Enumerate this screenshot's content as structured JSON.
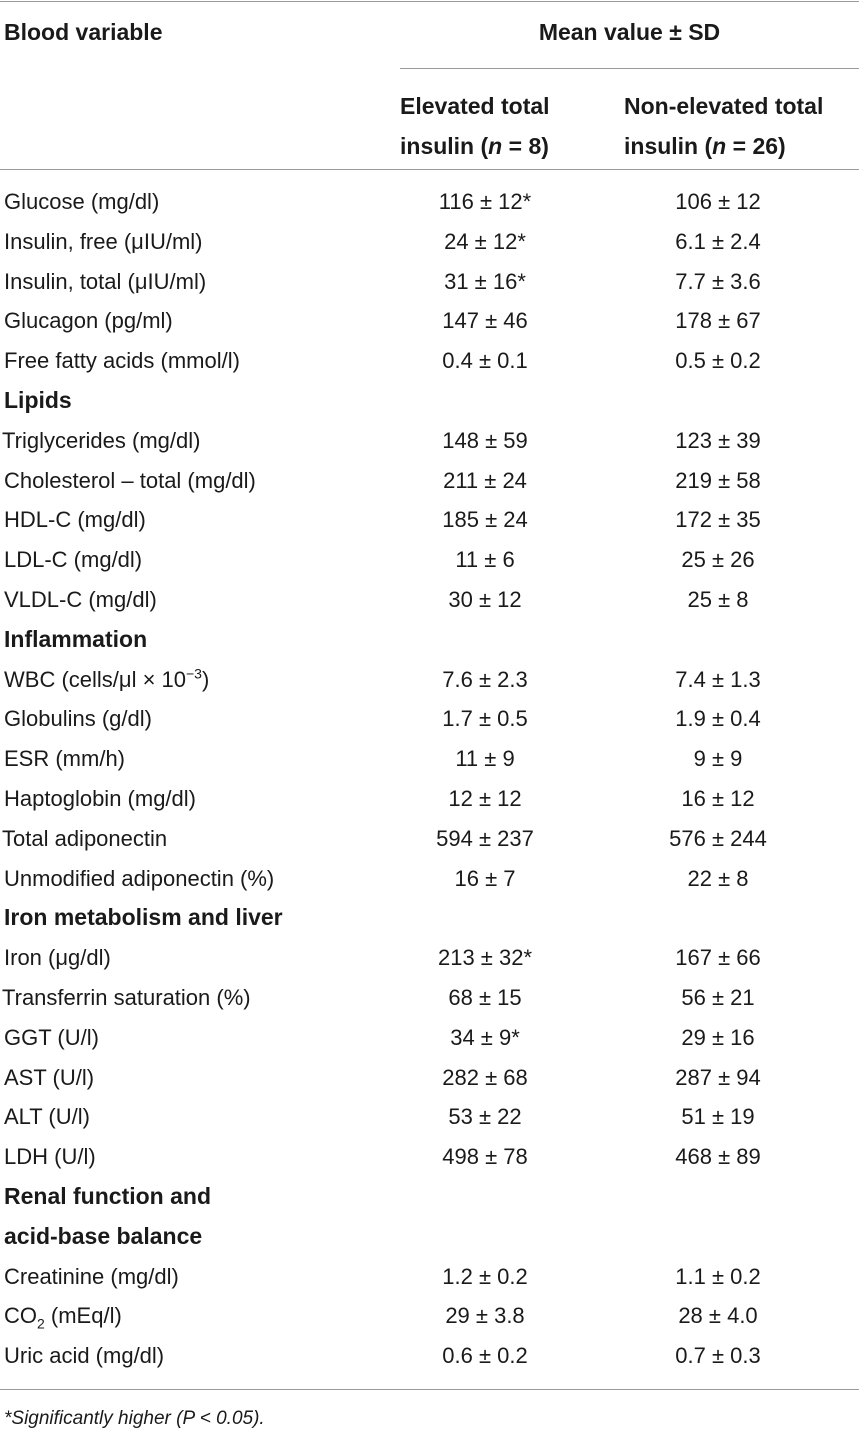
{
  "header": {
    "blood_variable": "Blood variable",
    "mean_value": "Mean value ± SD",
    "col1_line1": "Elevated total",
    "col1_line2_prefix": "insulin (",
    "col1_n": "n",
    "col1_line2_suffix": " = 8)",
    "col2_line1": "Non-elevated total",
    "col2_line2_prefix": "insulin (",
    "col2_n": "n",
    "col2_line2_suffix": " = 26)"
  },
  "rows": [
    {
      "type": "data",
      "label": "Glucose (mg/dl)",
      "elevated": "116 ± 12*",
      "non_elevated": "106 ± 12"
    },
    {
      "type": "data",
      "label": "Insulin, free (μIU/ml)",
      "elevated": "24 ± 12*",
      "non_elevated": "6.1 ± 2.4"
    },
    {
      "type": "data",
      "label": "Insulin, total (μIU/ml)",
      "elevated": "31 ± 16*",
      "non_elevated": "7.7 ± 3.6"
    },
    {
      "type": "data",
      "label": "Glucagon (pg/ml)",
      "elevated": "147 ± 46",
      "non_elevated": "178 ± 67"
    },
    {
      "type": "data",
      "label": "Free fatty acids (mmol/l)",
      "elevated": "0.4 ± 0.1",
      "non_elevated": "0.5 ± 0.2"
    },
    {
      "type": "section",
      "label": "Lipids"
    },
    {
      "type": "data",
      "flush": true,
      "label": "Triglycerides (mg/dl)",
      "elevated": "148 ± 59",
      "non_elevated": "123 ± 39"
    },
    {
      "type": "data",
      "label": "Cholesterol – total (mg/dl)",
      "elevated": "211 ± 24",
      "non_elevated": "219 ± 58"
    },
    {
      "type": "data",
      "label": "HDL-C (mg/dl)",
      "elevated": "185 ± 24",
      "non_elevated": "172 ± 35"
    },
    {
      "type": "data",
      "label": "LDL-C (mg/dl)",
      "elevated": "11 ± 6",
      "non_elevated": "25 ± 26"
    },
    {
      "type": "data",
      "label": "VLDL-C (mg/dl)",
      "elevated": "30 ± 12",
      "non_elevated": "25 ± 8"
    },
    {
      "type": "section",
      "label": "Inflammation"
    },
    {
      "type": "data",
      "label": "WBC (cells/μl × 10",
      "label_sup": "−3",
      "label_suffix": ")",
      "elevated": "7.6 ± 2.3",
      "non_elevated": "7.4 ± 1.3"
    },
    {
      "type": "data",
      "label": "Globulins (g/dl)",
      "elevated": "1.7 ± 0.5",
      "non_elevated": "1.9 ± 0.4"
    },
    {
      "type": "data",
      "label": "ESR (mm/h)",
      "elevated": "11 ± 9",
      "non_elevated": "9 ± 9"
    },
    {
      "type": "data",
      "label": "Haptoglobin (mg/dl)",
      "elevated": "12 ± 12",
      "non_elevated": "16 ± 12"
    },
    {
      "type": "data",
      "flush": true,
      "label": "Total adiponectin",
      "elevated": "594 ± 237",
      "non_elevated": "576 ± 244"
    },
    {
      "type": "data",
      "label": "Unmodified adiponectin (%)",
      "elevated": "16 ± 7",
      "non_elevated": "22 ± 8"
    },
    {
      "type": "section",
      "label": "Iron metabolism and liver"
    },
    {
      "type": "data",
      "label": "Iron (μg/dl)",
      "elevated": "213 ± 32*",
      "non_elevated": "167 ± 66"
    },
    {
      "type": "data",
      "flush": true,
      "label": "Transferrin saturation (%)",
      "elevated": "68 ± 15",
      "non_elevated": "56 ± 21"
    },
    {
      "type": "data",
      "label": "GGT (U/l)",
      "elevated": "34 ± 9*",
      "non_elevated": "29 ± 16"
    },
    {
      "type": "data",
      "label": "AST (U/l)",
      "elevated": "282 ± 68",
      "non_elevated": "287 ± 94"
    },
    {
      "type": "data",
      "label": "ALT (U/l)",
      "elevated": "53 ± 22",
      "non_elevated": "51 ± 19"
    },
    {
      "type": "data",
      "label": "LDH (U/l)",
      "elevated": "498 ± 78",
      "non_elevated": "468 ± 89"
    },
    {
      "type": "section",
      "label": "Renal function and"
    },
    {
      "type": "section",
      "label": "acid-base balance"
    },
    {
      "type": "data",
      "label": "Creatinine (mg/dl)",
      "elevated": "1.2 ± 0.2",
      "non_elevated": "1.1 ± 0.2"
    },
    {
      "type": "data",
      "label": "CO",
      "label_sub": "2",
      "label_suffix": " (mEq/l)",
      "elevated": "29 ± 3.8",
      "non_elevated": "28 ± 4.0"
    },
    {
      "type": "data",
      "label": "Uric acid (mg/dl)",
      "elevated": "0.6 ± 0.2",
      "non_elevated": "0.7 ± 0.3"
    }
  ],
  "footnote": "*Significantly higher (P < 0.05)."
}
